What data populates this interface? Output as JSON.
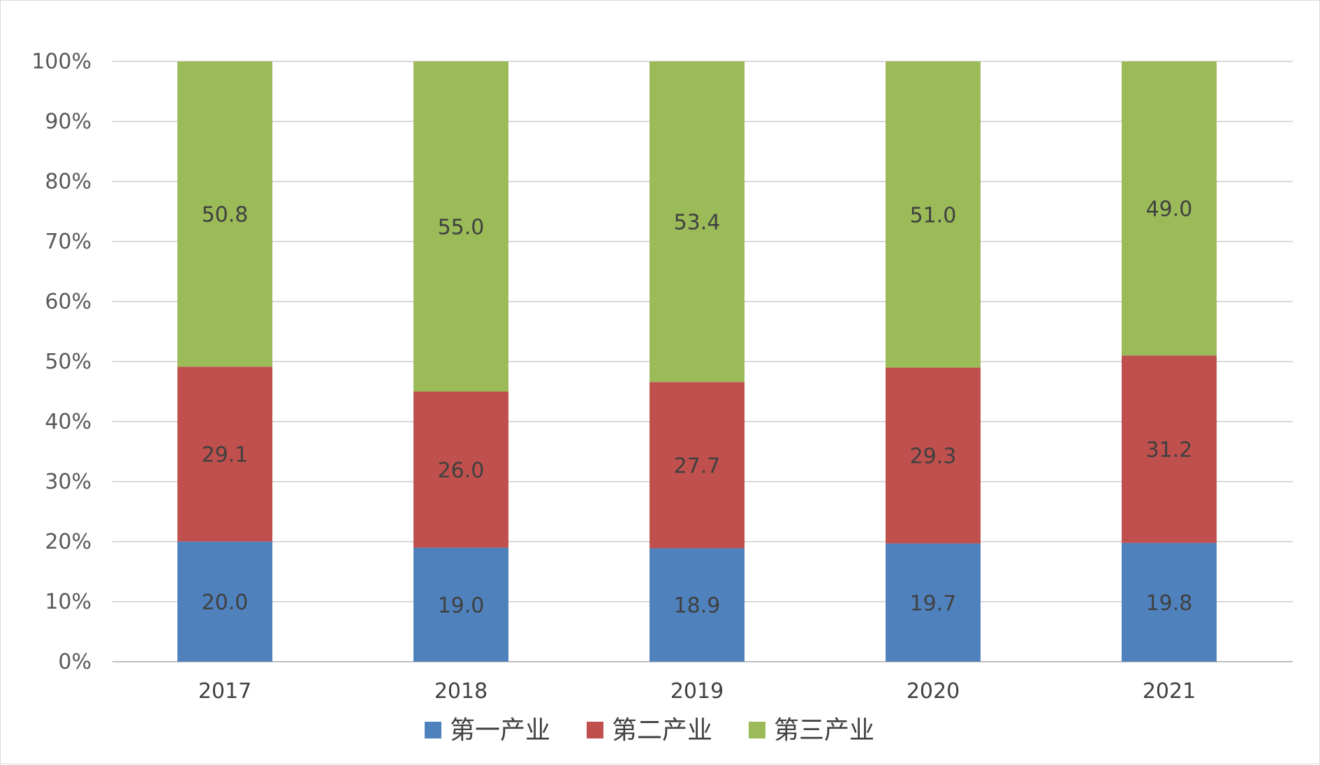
{
  "chart_data": {
    "type": "bar",
    "stacked": true,
    "percent_stacked": true,
    "categories": [
      "2017",
      "2018",
      "2019",
      "2020",
      "2021"
    ],
    "series": [
      {
        "name": "第一产业",
        "color": "#4f81bd",
        "values": [
          20.0,
          19.0,
          18.9,
          19.7,
          19.8
        ],
        "labels": [
          "20.0",
          "19.0",
          "18.9",
          "19.7",
          "19.8"
        ]
      },
      {
        "name": "第二产业",
        "color": "#c0504d",
        "values": [
          29.1,
          26.0,
          27.7,
          29.3,
          31.2
        ],
        "labels": [
          "29.1",
          "26.0",
          "27.7",
          "29.3",
          "31.2"
        ]
      },
      {
        "name": "第三产业",
        "color": "#9bbb59",
        "values": [
          50.8,
          55.0,
          53.4,
          51.0,
          49.0
        ],
        "labels": [
          "50.8",
          "55.0",
          "53.4",
          "51.0",
          "49.0"
        ]
      }
    ],
    "yticks": [
      "0%",
      "10%",
      "20%",
      "30%",
      "40%",
      "50%",
      "60%",
      "70%",
      "80%",
      "90%",
      "100%"
    ],
    "ylim": [
      0,
      100
    ],
    "grid": true,
    "legend_position": "bottom",
    "title": "",
    "xlabel": "",
    "ylabel": ""
  }
}
